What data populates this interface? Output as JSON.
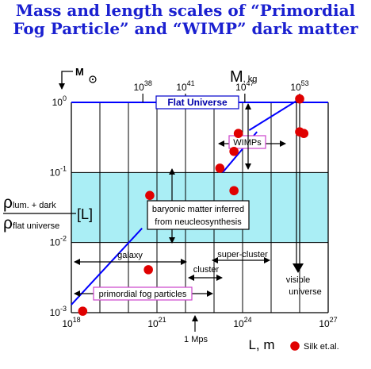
{
  "title": {
    "line1": "Mass and length scales of “Primordial",
    "line2": "Fog Particle” and “WIMP” dark matter"
  },
  "colors": {
    "title": "#1a20d0",
    "band": "#aaeef5",
    "line": "#0000ff",
    "dot": "#e00000",
    "label_border_blue": "#0000cc",
    "label_border_magenta": "#cc44cc"
  },
  "chart_data": {
    "type": "scatter",
    "x": {
      "label": "L, m",
      "scale": "log",
      "range": [
        1e+18,
        1e+27
      ],
      "ticks": [
        {
          "value": 1e+18,
          "mantissa": "10",
          "exp": "18"
        },
        {
          "value": 1e+21,
          "mantissa": "10",
          "exp": "21"
        },
        {
          "value": 1e+24,
          "mantissa": "10",
          "exp": "24"
        },
        {
          "value": 1e+27,
          "mantissa": "10",
          "exp": "27"
        }
      ]
    },
    "y": {
      "label_num": "ρlum. + dark",
      "label_den": "ρflat universe",
      "label_unit": "[L]",
      "scale": "log",
      "range": [
        0.001,
        1
      ],
      "ticks": [
        {
          "value": 1,
          "mantissa": "10",
          "exp": "0"
        },
        {
          "value": 0.1,
          "mantissa": "10",
          "exp": "-1"
        },
        {
          "value": 0.01,
          "mantissa": "10",
          "exp": "-2"
        },
        {
          "value": 0.001,
          "mantissa": "10",
          "exp": "-3"
        }
      ]
    },
    "top_axis": {
      "label": "M",
      "unit": "kg",
      "corner_label": "M",
      "ticks": [
        {
          "L": 3.2e+20,
          "mantissa": "10",
          "exp": "38"
        },
        {
          "L": 1e+22,
          "mantissa": "10",
          "exp": "41"
        },
        {
          "L": 1.2e+24,
          "mantissa": "10",
          "exp": "47"
        },
        {
          "L": 1e+26,
          "mantissa": "10",
          "exp": "53"
        }
      ]
    },
    "band": {
      "y": [
        0.01,
        0.1
      ]
    },
    "flat_line": {
      "y": 1
    },
    "points": [
      {
        "x": 2.5e+18,
        "y": 0.00105
      },
      {
        "x": 5e+20,
        "y": 0.0041
      },
      {
        "x": 5.6e+20,
        "y": 0.047
      },
      {
        "x": 1.6e+23,
        "y": 0.115
      },
      {
        "x": 5e+23,
        "y": 0.055
      },
      {
        "x": 5e+23,
        "y": 0.2
      },
      {
        "x": 7.1e+23,
        "y": 0.36
      },
      {
        "x": 1e+26,
        "y": 1.12
      },
      {
        "x": 1e+26,
        "y": 0.38
      },
      {
        "x": 1.4e+26,
        "y": 0.36
      }
    ],
    "lines": [
      {
        "x": [
          1e+18,
          3e+20
        ],
        "y": [
          0.0013,
          0.016
        ]
      },
      {
        "x": [
          2e+23,
          3.2e+24
        ],
        "y": [
          0.1,
          0.38
        ]
      },
      {
        "x": [
          1.7e+24,
          1e+26
        ],
        "y": [
          0.4,
          1.12
        ]
      }
    ],
    "annotations": {
      "flat_universe": "Flat Universe",
      "wimps": "WIMPs",
      "baryonic_line1": "baryonic matter inferred",
      "baryonic_line2": "from neucleosynthesis",
      "galaxy": "galaxy",
      "cluster": "cluster",
      "super_cluster": "super-cluster",
      "visible_line1": "visible",
      "visible_line2": "universe",
      "primordial": "primordial fog particles",
      "mps": "1 Mps"
    },
    "legend": {
      "label": "Silk et.al.",
      "position": "bottom-right"
    },
    "grid": true
  }
}
